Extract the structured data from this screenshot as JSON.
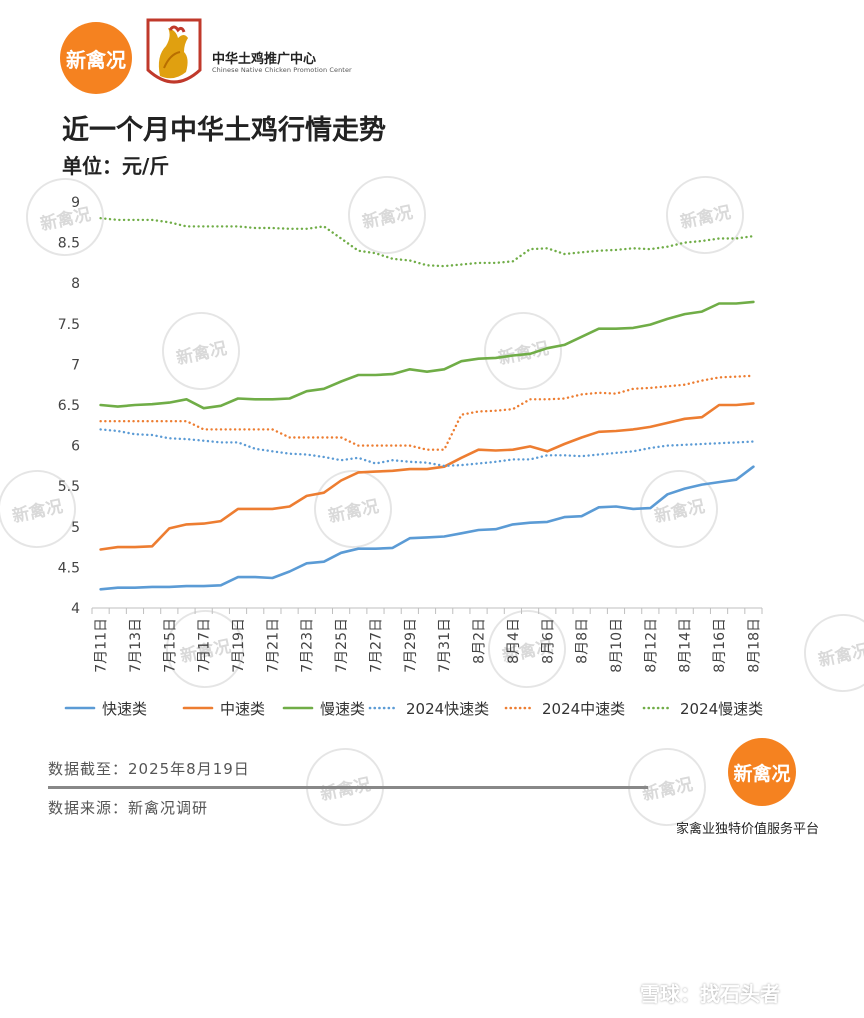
{
  "brand": {
    "logo_text": "新禽况",
    "org_name_cn": "中华土鸡推广中心",
    "org_name_en": "Chinese Native Chicken Promotion Center",
    "accent": "#f58220"
  },
  "footer": {
    "data_date": "数据截至：2025年8月19日",
    "data_source": "数据来源：新禽况调研",
    "slogan": "家禽业独特价值服务平台",
    "watermark": "雪球：找石头者"
  },
  "chart_data": {
    "type": "line",
    "title": "近一个月中华土鸡行情走势",
    "subtitle": "单位：元/斤",
    "xlabel": "",
    "ylabel": "",
    "ylim": [
      4,
      9
    ],
    "yticks": [
      "4",
      "4.5",
      "5",
      "5.5",
      "6",
      "6.5",
      "7",
      "7.5",
      "8",
      "8.5",
      "9"
    ],
    "grid": false,
    "legend": "bottom",
    "x_labels": [
      "7月11日",
      "7月13日",
      "7月15日",
      "7月17日",
      "7月19日",
      "7月21日",
      "7月23日",
      "7月25日",
      "7月27日",
      "7月29日",
      "7月31日",
      "8月2日",
      "8月4日",
      "8月6日",
      "8月8日",
      "8月10日",
      "8月12日",
      "8月14日",
      "8月16日",
      "8月18日"
    ],
    "series": [
      {
        "name": "快速类",
        "color": "#5b9bd5",
        "style": "solid",
        "values": [
          4.23,
          4.25,
          4.25,
          4.26,
          4.26,
          4.27,
          4.27,
          4.28,
          4.38,
          4.38,
          4.37,
          4.45,
          4.55,
          4.57,
          4.68,
          4.73,
          4.73,
          4.74,
          4.86,
          4.87,
          4.88,
          4.92,
          4.96,
          4.97,
          5.03,
          5.05,
          5.06,
          5.12,
          5.13,
          5.24,
          5.25,
          5.22,
          5.23,
          5.4,
          5.47,
          5.52,
          5.55,
          5.58,
          5.74
        ]
      },
      {
        "name": "中速类",
        "color": "#ed7d31",
        "style": "solid",
        "values": [
          4.72,
          4.75,
          4.75,
          4.76,
          4.98,
          5.03,
          5.04,
          5.07,
          5.22,
          5.22,
          5.22,
          5.25,
          5.38,
          5.42,
          5.57,
          5.67,
          5.68,
          5.69,
          5.71,
          5.71,
          5.74,
          5.85,
          5.95,
          5.94,
          5.95,
          5.99,
          5.93,
          6.02,
          6.1,
          6.17,
          6.18,
          6.2,
          6.23,
          6.28,
          6.33,
          6.35,
          6.5,
          6.5,
          6.52
        ]
      },
      {
        "name": "慢速类",
        "color": "#70ad47",
        "style": "solid",
        "values": [
          6.5,
          6.48,
          6.5,
          6.51,
          6.53,
          6.57,
          6.46,
          6.49,
          6.58,
          6.57,
          6.57,
          6.58,
          6.67,
          6.7,
          6.79,
          6.87,
          6.87,
          6.88,
          6.94,
          6.91,
          6.94,
          7.04,
          7.07,
          7.08,
          7.11,
          7.13,
          7.2,
          7.24,
          7.34,
          7.44,
          7.44,
          7.45,
          7.49,
          7.56,
          7.62,
          7.65,
          7.75,
          7.75,
          7.77
        ]
      },
      {
        "name": "2024快速类",
        "color": "#5b9bd5",
        "style": "dotted",
        "values": [
          6.2,
          6.18,
          6.14,
          6.13,
          6.09,
          6.08,
          6.06,
          6.04,
          6.04,
          5.96,
          5.93,
          5.9,
          5.89,
          5.86,
          5.82,
          5.85,
          5.78,
          5.82,
          5.8,
          5.79,
          5.75,
          5.76,
          5.78,
          5.8,
          5.83,
          5.83,
          5.88,
          5.88,
          5.87,
          5.89,
          5.91,
          5.93,
          5.97,
          6.0,
          6.01,
          6.02,
          6.03,
          6.04,
          6.05
        ]
      },
      {
        "name": "2024中速类",
        "color": "#ed7d31",
        "style": "dotted",
        "values": [
          6.3,
          6.3,
          6.3,
          6.3,
          6.3,
          6.3,
          6.2,
          6.2,
          6.2,
          6.2,
          6.2,
          6.1,
          6.1,
          6.1,
          6.1,
          6.0,
          6.0,
          6.0,
          6.0,
          5.95,
          5.95,
          6.38,
          6.42,
          6.43,
          6.45,
          6.57,
          6.57,
          6.58,
          6.63,
          6.65,
          6.64,
          6.7,
          6.71,
          6.73,
          6.75,
          6.8,
          6.84,
          6.85,
          6.86
        ]
      },
      {
        "name": "2024慢速类",
        "color": "#70ad47",
        "style": "dotted",
        "values": [
          8.8,
          8.78,
          8.78,
          8.78,
          8.75,
          8.7,
          8.7,
          8.7,
          8.7,
          8.68,
          8.68,
          8.67,
          8.67,
          8.7,
          8.55,
          8.4,
          8.37,
          8.3,
          8.28,
          8.22,
          8.21,
          8.23,
          8.25,
          8.25,
          8.27,
          8.42,
          8.43,
          8.36,
          8.38,
          8.4,
          8.41,
          8.43,
          8.42,
          8.45,
          8.5,
          8.52,
          8.55,
          8.55,
          8.58
        ]
      }
    ]
  }
}
